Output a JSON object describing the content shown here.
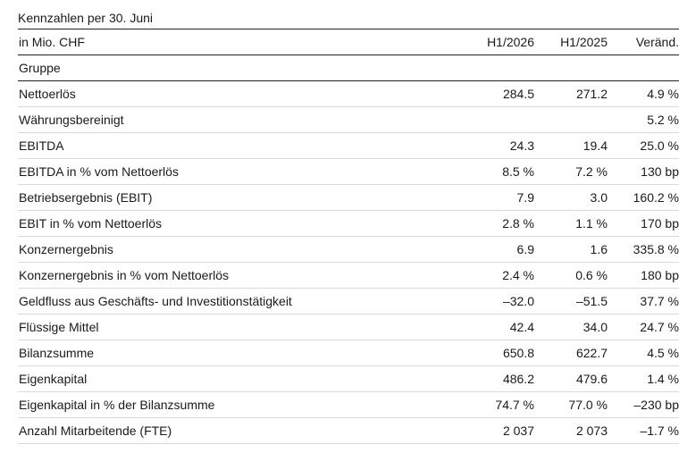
{
  "caption": "Kennzahlen per 30. Juni",
  "header": {
    "unit": "in Mio. CHF",
    "col_current": "H1/2026",
    "col_prior": "H1/2025",
    "col_change": "Veränd."
  },
  "section": "Gruppe",
  "rows": [
    {
      "label": "Nettoerlös",
      "current": "284.5",
      "prior": "271.2",
      "change": "4.9 %"
    },
    {
      "label": "Währungsbereinigt",
      "current": "",
      "prior": "",
      "change": "5.2 %"
    },
    {
      "label": "EBITDA",
      "current": "24.3",
      "prior": "19.4",
      "change": "25.0 %"
    },
    {
      "label": "EBITDA in % vom Nettoerlös",
      "current": "8.5 %",
      "prior": "7.2 %",
      "change": "130 bp"
    },
    {
      "label": "Betriebsergebnis (EBIT)",
      "current": "7.9",
      "prior": "3.0",
      "change": "160.2 %"
    },
    {
      "label": "EBIT in % vom Nettoerlös",
      "current": "2.8 %",
      "prior": "1.1 %",
      "change": "170 bp"
    },
    {
      "label": "Konzernergebnis",
      "current": "6.9",
      "prior": "1.6",
      "change": "335.8 %"
    },
    {
      "label": "Konzernergebnis in % vom Nettoerlös",
      "current": "2.4 %",
      "prior": "0.6 %",
      "change": "180 bp"
    },
    {
      "label": "Geldfluss aus Geschäfts- und Investitionstätigkeit",
      "current": "–32.0",
      "prior": "–51.5",
      "change": "37.7 %"
    },
    {
      "label": "Flüssige Mittel",
      "current": "42.4",
      "prior": "34.0",
      "change": "24.7 %"
    },
    {
      "label": "Bilanzsumme",
      "current": "650.8",
      "prior": "622.7",
      "change": "4.5 %"
    },
    {
      "label": "Eigenkapital",
      "current": "486.2",
      "prior": "479.6",
      "change": "1.4 %"
    },
    {
      "label": "Eigenkapital in % der Bilanzsumme",
      "current": "74.7 %",
      "prior": "77.0 %",
      "change": "–230 bp"
    },
    {
      "label": "Anzahl Mitarbeitende (FTE)",
      "current": "2 037",
      "prior": "2 073",
      "change": "–1.7 %"
    }
  ]
}
